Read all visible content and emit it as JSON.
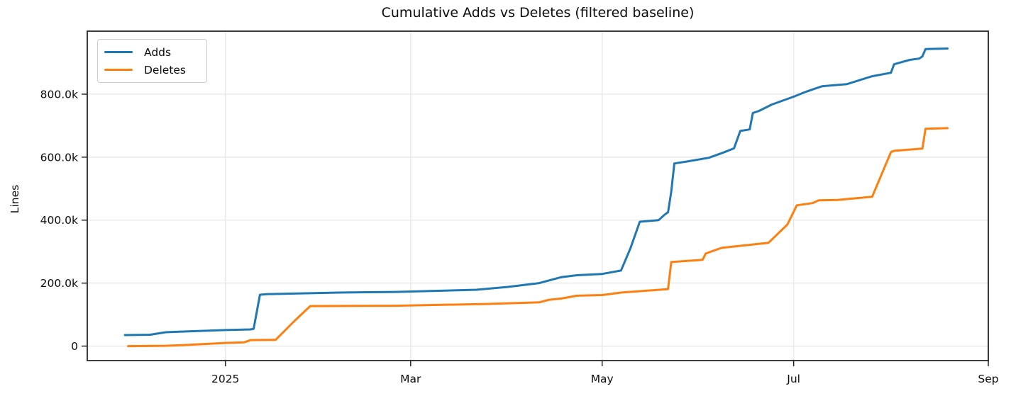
{
  "chart_data": {
    "type": "line",
    "title": "Cumulative Adds vs Deletes (filtered baseline)",
    "xlabel": "",
    "ylabel": "Lines",
    "grid": true,
    "legend_position": "upper left",
    "x_range": [
      "2024-11-18",
      "2025-09-01"
    ],
    "y_range": [
      -46000,
      1000000
    ],
    "x_ticks": [
      {
        "date": "2025-01-01",
        "label": "2025"
      },
      {
        "date": "2025-03-01",
        "label": "Mar"
      },
      {
        "date": "2025-05-01",
        "label": "May"
      },
      {
        "date": "2025-07-01",
        "label": "Jul"
      },
      {
        "date": "2025-09-01",
        "label": "Sep"
      }
    ],
    "y_ticks": [
      {
        "value": 0,
        "label": "0"
      },
      {
        "value": 200000,
        "label": "200.0k"
      },
      {
        "value": 400000,
        "label": "400.0k"
      },
      {
        "value": 600000,
        "label": "600.0k"
      },
      {
        "value": 800000,
        "label": "800.0k"
      }
    ],
    "series": [
      {
        "name": "Adds",
        "color": "#1f77b4",
        "points": [
          [
            "2024-11-30",
            35000
          ],
          [
            "2024-12-08",
            36000
          ],
          [
            "2024-12-13",
            44000
          ],
          [
            "2024-12-18",
            46000
          ],
          [
            "2025-01-01",
            51000
          ],
          [
            "2025-01-09",
            53000
          ],
          [
            "2025-01-10",
            55000
          ],
          [
            "2025-01-12",
            163000
          ],
          [
            "2025-01-14",
            165000
          ],
          [
            "2025-02-06",
            170000
          ],
          [
            "2025-02-24",
            172000
          ],
          [
            "2025-03-22",
            179000
          ],
          [
            "2025-04-01",
            188000
          ],
          [
            "2025-04-11",
            200000
          ],
          [
            "2025-04-18",
            219000
          ],
          [
            "2025-04-23",
            225000
          ],
          [
            "2025-05-01",
            229000
          ],
          [
            "2025-05-07",
            240000
          ],
          [
            "2025-05-10",
            310000
          ],
          [
            "2025-05-13",
            395000
          ],
          [
            "2025-05-19",
            400000
          ],
          [
            "2025-05-21",
            418000
          ],
          [
            "2025-05-22",
            425000
          ],
          [
            "2025-05-23",
            490000
          ],
          [
            "2025-05-24",
            580000
          ],
          [
            "2025-05-28",
            586000
          ],
          [
            "2025-06-04",
            598000
          ],
          [
            "2025-06-09",
            616000
          ],
          [
            "2025-06-12",
            628000
          ],
          [
            "2025-06-14",
            683000
          ],
          [
            "2025-06-17",
            688000
          ],
          [
            "2025-06-18",
            740000
          ],
          [
            "2025-06-20",
            747000
          ],
          [
            "2025-06-24",
            767000
          ],
          [
            "2025-07-01",
            792000
          ],
          [
            "2025-07-05",
            808000
          ],
          [
            "2025-07-10",
            825000
          ],
          [
            "2025-07-18",
            832000
          ],
          [
            "2025-07-26",
            857000
          ],
          [
            "2025-08-01",
            868000
          ],
          [
            "2025-08-02",
            895000
          ],
          [
            "2025-08-07",
            909000
          ],
          [
            "2025-08-10",
            913000
          ],
          [
            "2025-08-11",
            920000
          ],
          [
            "2025-08-12",
            943000
          ],
          [
            "2025-08-19",
            945000
          ]
        ]
      },
      {
        "name": "Deletes",
        "color": "#ff7f0e",
        "points": [
          [
            "2024-12-01",
            0
          ],
          [
            "2024-12-13",
            1000
          ],
          [
            "2024-12-18",
            3000
          ],
          [
            "2025-01-01",
            10000
          ],
          [
            "2025-01-07",
            12000
          ],
          [
            "2025-01-09",
            19000
          ],
          [
            "2025-01-17",
            20000
          ],
          [
            "2025-01-23",
            80000
          ],
          [
            "2025-01-28",
            127000
          ],
          [
            "2025-02-24",
            128000
          ],
          [
            "2025-03-26",
            134000
          ],
          [
            "2025-04-11",
            139000
          ],
          [
            "2025-04-14",
            147000
          ],
          [
            "2025-04-18",
            151000
          ],
          [
            "2025-04-23",
            160000
          ],
          [
            "2025-05-01",
            162000
          ],
          [
            "2025-05-07",
            170000
          ],
          [
            "2025-05-22",
            181000
          ],
          [
            "2025-05-23",
            267000
          ],
          [
            "2025-06-02",
            274000
          ],
          [
            "2025-06-03",
            294000
          ],
          [
            "2025-06-08",
            312000
          ],
          [
            "2025-06-23",
            328000
          ],
          [
            "2025-06-29",
            386000
          ],
          [
            "2025-07-02",
            447000
          ],
          [
            "2025-07-07",
            454000
          ],
          [
            "2025-07-09",
            463000
          ],
          [
            "2025-07-15",
            464000
          ],
          [
            "2025-07-26",
            474000
          ],
          [
            "2025-08-01",
            616000
          ],
          [
            "2025-08-02",
            620000
          ],
          [
            "2025-08-11",
            627000
          ],
          [
            "2025-08-12",
            690000
          ],
          [
            "2025-08-19",
            692000
          ]
        ]
      }
    ]
  }
}
